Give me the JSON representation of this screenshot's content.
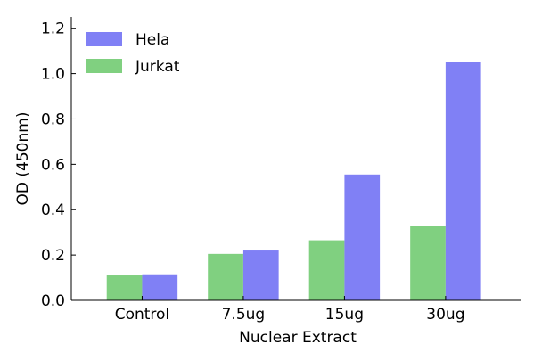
{
  "chart_data": {
    "type": "bar",
    "categories": [
      "Control",
      "7.5ug",
      "15ug",
      "30ug"
    ],
    "series": [
      {
        "name": "Jurkat",
        "color": "#80d080",
        "values": [
          0.11,
          0.205,
          0.265,
          0.33
        ]
      },
      {
        "name": "Hela",
        "color": "#8080f5",
        "values": [
          0.115,
          0.22,
          0.555,
          1.05
        ]
      }
    ],
    "legend_order": [
      "Hela",
      "Jurkat"
    ],
    "legend_placement": "top-left",
    "xlabel": "Nuclear Extract",
    "ylabel": "OD (450nm)",
    "ylim": [
      0,
      1.25
    ],
    "yticks": [
      "0.0",
      "0.2",
      "0.4",
      "0.6",
      "0.8",
      "1.0",
      "1.2"
    ],
    "grid": false
  }
}
